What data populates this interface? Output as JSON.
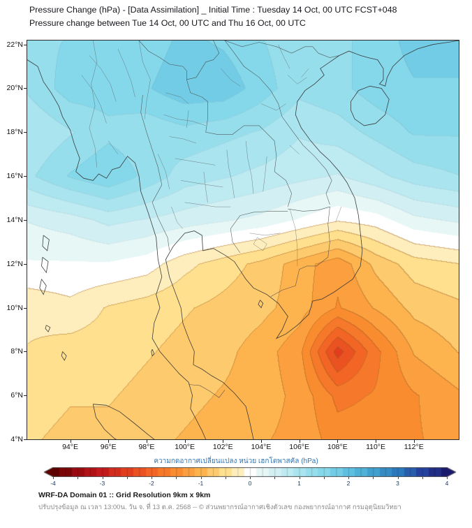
{
  "header": {
    "title_line1": "Pressure Change (hPa) - [Data Assimilation] _ Initial Time : Tuesday 14 Oct, 00 UTC FCST+048",
    "title_line2": "Pressure change between Tue 14 Oct, 00 UTC and Thu 16 Oct, 00 UTC"
  },
  "map": {
    "extent": {
      "lon_min": 91.75,
      "lon_max": 114.35,
      "lat_min": 4.0,
      "lat_max": 22.18
    },
    "lat_tick_labels": [
      "22°N",
      "20°N",
      "18°N",
      "16°N",
      "14°N",
      "12°N",
      "10°N",
      "8°N",
      "6°N",
      "4°N"
    ],
    "lat_tick_values": [
      22,
      20,
      18,
      16,
      14,
      12,
      10,
      8,
      6,
      4
    ],
    "lon_tick_labels": [
      "94°E",
      "96°E",
      "98°E",
      "100°E",
      "102°E",
      "104°E",
      "106°E",
      "108°E",
      "110°E",
      "112°E"
    ],
    "lon_tick_values": [
      94,
      96,
      98,
      100,
      102,
      104,
      106,
      108,
      110,
      112
    ]
  },
  "chart_data": {
    "type": "heatmap",
    "title": "Pressure change (hPa) between Tue 14 Oct, 00 UTC and Thu 16 Oct, 00 UTC",
    "units": "hPa",
    "value_range": [
      -4,
      4
    ],
    "grid_lons": [
      92,
      94,
      96,
      98,
      100,
      102,
      104,
      106,
      108,
      110,
      112,
      114
    ],
    "grid_lats": [
      22,
      20,
      18,
      16,
      14,
      12,
      10,
      8,
      6,
      4
    ],
    "values_hpa": [
      [
        1.3,
        1.4,
        1.5,
        1.5,
        1.7,
        1.6,
        1.4,
        1.2,
        1.3,
        1.5,
        1.7,
        1.7
      ],
      [
        1.2,
        1.5,
        1.5,
        1.6,
        1.8,
        1.8,
        1.5,
        1.2,
        1.3,
        1.5,
        1.6,
        1.6
      ],
      [
        0.9,
        1.1,
        1.3,
        1.2,
        1.3,
        1.2,
        1.1,
        0.9,
        1.0,
        1.2,
        1.4,
        1.4
      ],
      [
        1.1,
        1.4,
        1.6,
        1.3,
        1.0,
        0.9,
        0.8,
        0.7,
        0.6,
        0.8,
        1.0,
        1.1
      ],
      [
        0.4,
        0.5,
        0.7,
        0.6,
        0.5,
        0.4,
        0.3,
        0.1,
        -0.1,
        0.0,
        0.3,
        0.4
      ],
      [
        0.1,
        0.1,
        0.1,
        0.0,
        -0.3,
        -0.5,
        -0.7,
        -1.0,
        -1.3,
        -0.8,
        -0.5,
        -0.4
      ],
      [
        -0.3,
        -0.2,
        -0.4,
        -0.5,
        -0.6,
        -0.7,
        -0.8,
        -1.0,
        -1.4,
        -1.1,
        -0.8,
        -0.7
      ],
      [
        -0.4,
        -0.5,
        -0.5,
        -0.6,
        -0.7,
        -0.8,
        -1.0,
        -1.3,
        -2.5,
        -1.7,
        -1.1,
        -0.9
      ],
      [
        -0.5,
        -0.6,
        -0.6,
        -0.7,
        -0.8,
        -0.9,
        -1.0,
        -1.2,
        -1.7,
        -1.6,
        -1.4,
        -1.2
      ],
      [
        -0.6,
        -0.7,
        -0.7,
        -0.8,
        -0.9,
        -1.0,
        -1.1,
        -1.2,
        -1.5,
        -1.5,
        -1.4,
        -1.3
      ]
    ],
    "contour_interval_hpa": 0.25
  },
  "colorbar": {
    "label": "ความกดอากาศเปลี่ยนแปลง หน่วย เฮกโตพาสคัล (hPa)",
    "tick_labels": [
      "-4",
      "-3",
      "-2",
      "-1",
      "0",
      "1",
      "2",
      "3",
      "4"
    ],
    "tick_values": [
      -4,
      -3,
      -2,
      -1,
      0,
      1,
      2,
      3,
      4
    ],
    "stops": [
      {
        "v": -4,
        "c": "#5c0000"
      },
      {
        "v": -3.5,
        "c": "#9a0b10"
      },
      {
        "v": -3,
        "c": "#c31a1c"
      },
      {
        "v": -2.5,
        "c": "#e23e1e"
      },
      {
        "v": -2,
        "c": "#f26524"
      },
      {
        "v": -1.5,
        "c": "#fa8c30"
      },
      {
        "v": -1,
        "c": "#fdb44e"
      },
      {
        "v": -0.5,
        "c": "#fee08f"
      },
      {
        "v": -0.15,
        "c": "#fff3cf"
      },
      {
        "v": 0,
        "c": "#ffffff"
      },
      {
        "v": 0.15,
        "c": "#eefaf7"
      },
      {
        "v": 0.5,
        "c": "#d2f0f3"
      },
      {
        "v": 1,
        "c": "#a9e4ef"
      },
      {
        "v": 1.5,
        "c": "#85d7ea"
      },
      {
        "v": 2,
        "c": "#5ec0e0"
      },
      {
        "v": 2.5,
        "c": "#3fa0d0"
      },
      {
        "v": 3,
        "c": "#2b78ba"
      },
      {
        "v": 3.5,
        "c": "#24419e"
      },
      {
        "v": 4,
        "c": "#1b1b6e"
      }
    ]
  },
  "footer": {
    "line1": "WRF-DA Domain 01 :: Grid Resolution 9km x 9km",
    "line2": "ปรับปรุงข้อมูล ณ เวลา 13:00น. วัน จ. ที่ 13 ต.ค. 2568 -- © ส่วนพยากรณ์อากาศเชิงตัวเลข กองพยากรณ์อากาศ กรมอุตุนิยมวิทยา"
  }
}
